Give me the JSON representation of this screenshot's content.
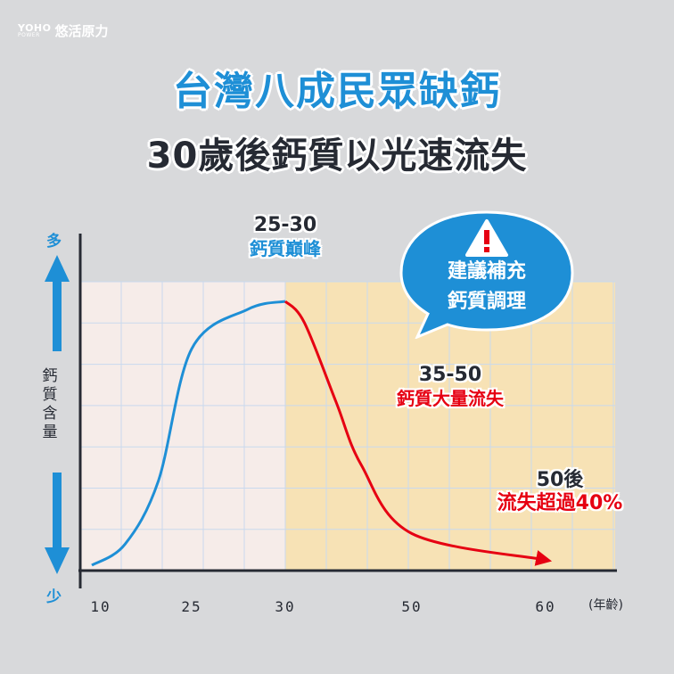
{
  "logo": {
    "brand": "YOHO",
    "sub": "POWER",
    "name": "悠活原力"
  },
  "title": {
    "line1": "台灣八成民眾缺鈣",
    "line2": "30歲後鈣質以光速流失"
  },
  "y_axis": {
    "top_label": "多",
    "bottom_label": "少",
    "name": "鈣質含量"
  },
  "x_axis": {
    "ticks": [
      "10",
      "25",
      "30",
      "50",
      "60"
    ],
    "unit": "(年齡)"
  },
  "annotations": {
    "peak": {
      "range": "25-30",
      "desc": "鈣質巔峰"
    },
    "loss": {
      "range": "35-50",
      "desc": "鈣質大量流失"
    },
    "late": {
      "range": "50後",
      "desc": "流失超過40%"
    }
  },
  "bubble": {
    "line1": "建議補充",
    "line2": "鈣質調理",
    "icon": "warning-icon"
  },
  "colors": {
    "rise": "#1e8fd6",
    "decline": "#e60012",
    "peak_zone": "#f6ece9",
    "decline_zone": "#f7e2b5",
    "grid": "#c9d9ee"
  },
  "chart_data": {
    "type": "line",
    "title": "",
    "xlabel": "(年齡)",
    "ylabel": "鈣質含量",
    "x_tick_labels": [
      "10",
      "25",
      "30",
      "50",
      "60"
    ],
    "grid": true,
    "series": [
      {
        "segment": "rise",
        "color": "#1e8fd6",
        "x": [
          10,
          15,
          20,
          25,
          28,
          30
        ],
        "y": [
          0,
          0.08,
          0.32,
          0.82,
          0.97,
          1.0
        ]
      },
      {
        "segment": "decline",
        "color": "#e60012",
        "x": [
          30,
          33,
          38,
          42,
          50,
          60
        ],
        "y": [
          1.0,
          0.92,
          0.62,
          0.38,
          0.12,
          0.02
        ]
      }
    ]
  }
}
